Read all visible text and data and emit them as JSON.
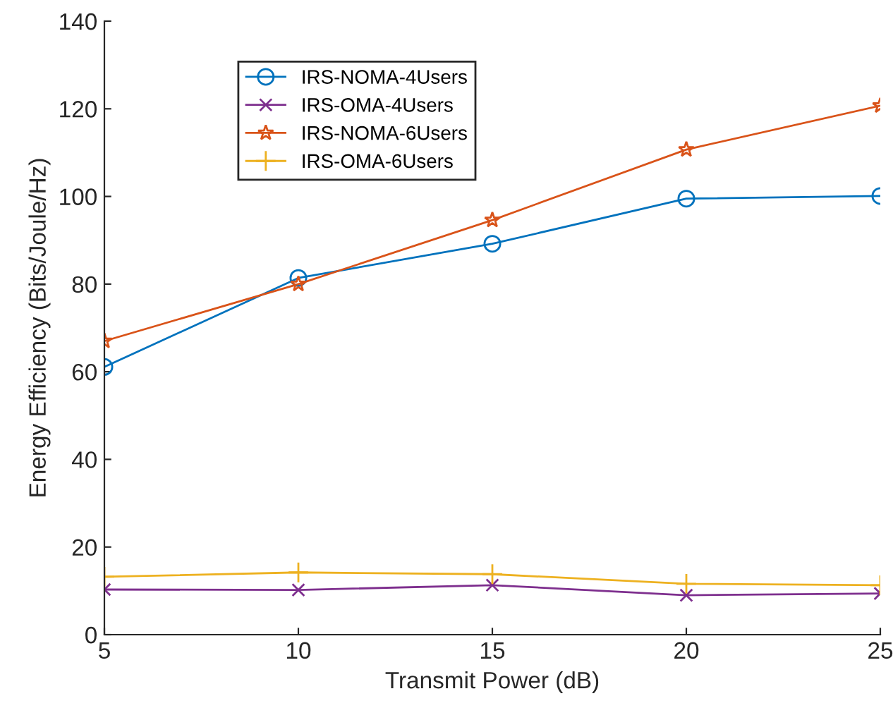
{
  "chart_data": {
    "type": "line",
    "xlabel": "Transmit Power (dB)",
    "ylabel": "Energy Efficiency (Bits/Joule/Hz)",
    "x": [
      5,
      10,
      15,
      20,
      25
    ],
    "xlim": [
      5,
      25
    ],
    "xticks": [
      5,
      10,
      15,
      20,
      25
    ],
    "ylim": [
      0,
      140
    ],
    "yticks": [
      0,
      20,
      40,
      60,
      80,
      100,
      120,
      140
    ],
    "grid": false,
    "legend": "top left",
    "line_style": "solid",
    "series": [
      {
        "name": "IRS-NOMA-4Users",
        "color": "#0072bd",
        "marker": "circle",
        "values": [
          61.1,
          81.4,
          89.2,
          99.5,
          100.1
        ]
      },
      {
        "name": "IRS-OMA-4Users",
        "color": "#7e2f8e",
        "marker": "cross",
        "values": [
          10.3,
          10.2,
          11.3,
          9.0,
          9.4
        ]
      },
      {
        "name": "IRS-NOMA-6Users",
        "color": "#d95319",
        "marker": "star",
        "values": [
          67.0,
          80.0,
          94.6,
          110.7,
          120.7
        ]
      },
      {
        "name": "IRS-OMA-6Users",
        "color": "#edb120",
        "marker": "plus",
        "values": [
          13.2,
          14.2,
          13.8,
          11.6,
          11.3
        ]
      }
    ]
  }
}
